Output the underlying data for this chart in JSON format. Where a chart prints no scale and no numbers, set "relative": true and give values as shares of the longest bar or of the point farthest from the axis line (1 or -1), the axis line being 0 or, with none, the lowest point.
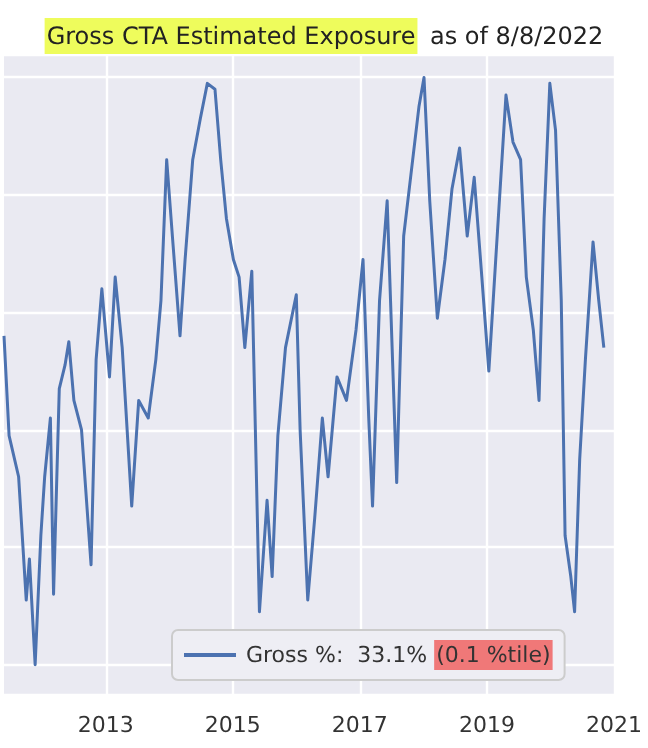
{
  "chart_data": {
    "type": "line",
    "title": "Gross CTA Estimated Exposure",
    "subtitle": "as of 8/8/2022",
    "relative": true,
    "grid": true,
    "legend": "bottom",
    "annotations": [
      "(0.1 %tile)"
    ],
    "xlim": [
      2011.4,
      2021.0
    ],
    "xticks": [
      2013,
      2015,
      2017,
      2019,
      2021
    ],
    "series": [
      {
        "name": "Gross %:  33.1%",
        "color": "#4c72b0",
        "x": [
          2011.4,
          2011.48,
          2011.63,
          2011.75,
          2011.8,
          2011.89,
          2011.98,
          2012.04,
          2012.13,
          2012.18,
          2012.27,
          2012.36,
          2012.42,
          2012.5,
          2012.62,
          2012.77,
          2012.85,
          2012.94,
          2013.06,
          2013.15,
          2013.26,
          2013.41,
          2013.52,
          2013.67,
          2013.79,
          2013.87,
          2013.96,
          2014.05,
          2014.17,
          2014.25,
          2014.37,
          2014.49,
          2014.6,
          2014.72,
          2014.81,
          2014.9,
          2015.01,
          2015.1,
          2015.19,
          2015.3,
          2015.42,
          2015.54,
          2015.62,
          2015.71,
          2015.83,
          2016.0,
          2016.06,
          2016.18,
          2016.29,
          2016.41,
          2016.5,
          2016.64,
          2016.79,
          2016.94,
          2017.05,
          2017.14,
          2017.2,
          2017.31,
          2017.43,
          2017.58,
          2017.69,
          2017.81,
          2017.93,
          2018.01,
          2018.1,
          2018.22,
          2018.34,
          2018.45,
          2018.57,
          2018.69,
          2018.8,
          2018.92,
          2019.03,
          2019.15,
          2019.3,
          2019.41,
          2019.53,
          2019.62,
          2019.73,
          2019.82,
          2019.9,
          2019.99,
          2020.08,
          2020.17,
          2020.23,
          2020.32,
          2020.38,
          2020.46,
          2020.55,
          2020.67,
          2020.76,
          2020.84
        ],
        "values": [
          0.56,
          0.39,
          0.32,
          0.11,
          0.18,
          0.0,
          0.22,
          0.32,
          0.42,
          0.12,
          0.47,
          0.51,
          0.55,
          0.45,
          0.4,
          0.17,
          0.52,
          0.64,
          0.49,
          0.66,
          0.54,
          0.27,
          0.45,
          0.42,
          0.52,
          0.62,
          0.86,
          0.73,
          0.56,
          0.69,
          0.86,
          0.93,
          0.99,
          0.98,
          0.86,
          0.76,
          0.69,
          0.66,
          0.54,
          0.67,
          0.09,
          0.28,
          0.15,
          0.39,
          0.54,
          0.63,
          0.4,
          0.11,
          0.25,
          0.42,
          0.32,
          0.49,
          0.45,
          0.57,
          0.69,
          0.42,
          0.27,
          0.62,
          0.79,
          0.31,
          0.73,
          0.84,
          0.95,
          1.0,
          0.79,
          0.59,
          0.69,
          0.81,
          0.88,
          0.73,
          0.83,
          0.66,
          0.5,
          0.71,
          0.97,
          0.89,
          0.86,
          0.66,
          0.57,
          0.45,
          0.76,
          0.99,
          0.91,
          0.62,
          0.22,
          0.15,
          0.09,
          0.35,
          0.52,
          0.72,
          0.62,
          0.54
        ]
      }
    ]
  }
}
